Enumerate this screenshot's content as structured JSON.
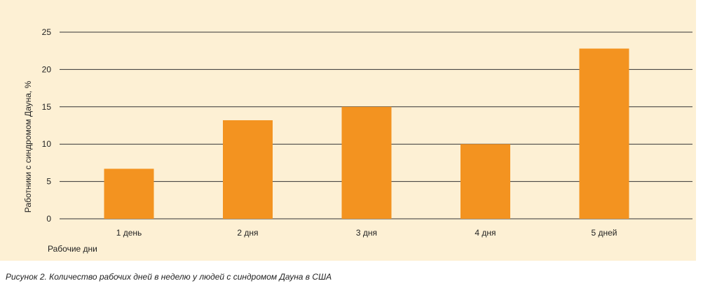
{
  "caption": "Рисунок 2. Количество рабочих дней в неделю у людей с синдромом Дауна в США",
  "colors": {
    "background": "#fdf0d4",
    "bar": "#f39320",
    "grid": "#333333"
  },
  "chart_data": {
    "type": "bar",
    "categories": [
      "1 день",
      "2 дня",
      "3 дня",
      "4 дня",
      "5 дней"
    ],
    "values": [
      6.7,
      13.2,
      15.0,
      10.0,
      22.8
    ],
    "xlabel": "Рабочие дни",
    "ylabel": "Работники с синдромом Дауна, %",
    "ylim": [
      0,
      25
    ],
    "yticks": [
      0,
      5,
      10,
      15,
      20,
      25
    ],
    "grid": true
  }
}
